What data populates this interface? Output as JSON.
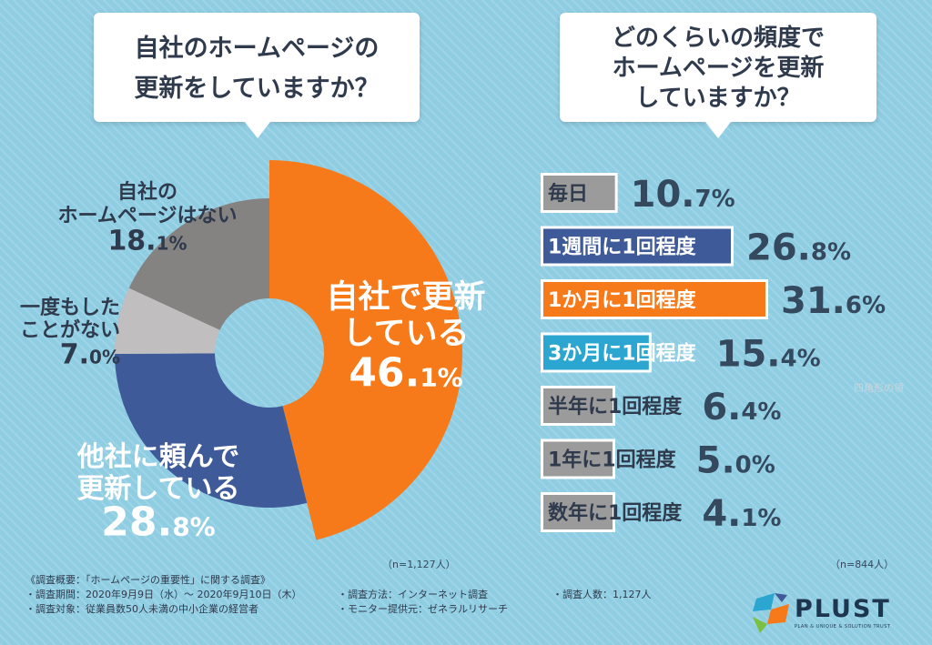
{
  "questions": {
    "left_lines": [
      "自社のホームページの",
      "更新をしていますか？"
    ],
    "right_lines": [
      "どのくらいの頻度で",
      "ホームページを更新",
      "していますか？"
    ]
  },
  "notes": {
    "left_n": "（n=1,127人）",
    "right_n": "（n=844人）",
    "watermark": "四角形の領"
  },
  "footer": {
    "title": "《調査概要：「ホームページの重要性」に関する調査》",
    "row1": [
      "・調査期間：2020年9月9日（水）～ 2020年9月10日（木）",
      "・調査方法：インターネット調査",
      "・調査人数：1,127人"
    ],
    "row2": [
      "・調査対象：従業員数50人未満の中小企業の経営者",
      "・モニター提供元：ゼネラルリサーチ"
    ]
  },
  "logo": {
    "text": "PLUST",
    "sub": "PLAN & UNIQUE & SOLUTION TRUST"
  },
  "chart_data": [
    {
      "type": "pie",
      "slices": [
        {
          "label_lines": [
            "自社で更新",
            "している"
          ],
          "value": 46.1,
          "value_text": [
            "46.",
            "1%"
          ],
          "color": "#f77a1a",
          "text_color": "#ffffff"
        },
        {
          "label_lines": [
            "他社に頼んで",
            "更新している"
          ],
          "value": 28.8,
          "value_text": [
            "28.",
            "8%"
          ],
          "color": "#3e5a99",
          "text_color": "#ffffff"
        },
        {
          "label_lines": [
            "一度もした",
            "ことがない"
          ],
          "value": 7.0,
          "value_text": [
            "7.",
            "0%"
          ],
          "color": "#c0bebf",
          "text_color": "#2f3a4c"
        },
        {
          "label_lines": [
            "自社の",
            "ホームページはない"
          ],
          "value": 18.1,
          "value_text": [
            "18.",
            "1%"
          ],
          "color": "#858282",
          "text_color": "#2f3a4c"
        }
      ]
    },
    {
      "type": "bar",
      "orientation": "horizontal",
      "categories": [
        "毎日",
        "1週間に1回程度",
        "1か月に1回程度",
        "3か月に1回程度",
        "半年に1回程度",
        "1年に1回程度",
        "数年に1回程度"
      ],
      "values": [
        10.7,
        26.8,
        31.6,
        15.4,
        6.4,
        5.0,
        4.1
      ],
      "value_text": [
        [
          "10.",
          "7%"
        ],
        [
          "26.",
          "8%"
        ],
        [
          "31.",
          "6%"
        ],
        [
          "15.",
          "4%"
        ],
        [
          "6.",
          "4%"
        ],
        [
          "5.",
          "0%"
        ],
        [
          "4.",
          "1%"
        ]
      ],
      "colors": [
        "#9b9b9b",
        "#3e5a99",
        "#f77a1a",
        "#2aa6d1",
        "#9b9b9b",
        "#9b9b9b",
        "#9b9b9b"
      ],
      "xlim": [
        0,
        31.6
      ]
    }
  ]
}
